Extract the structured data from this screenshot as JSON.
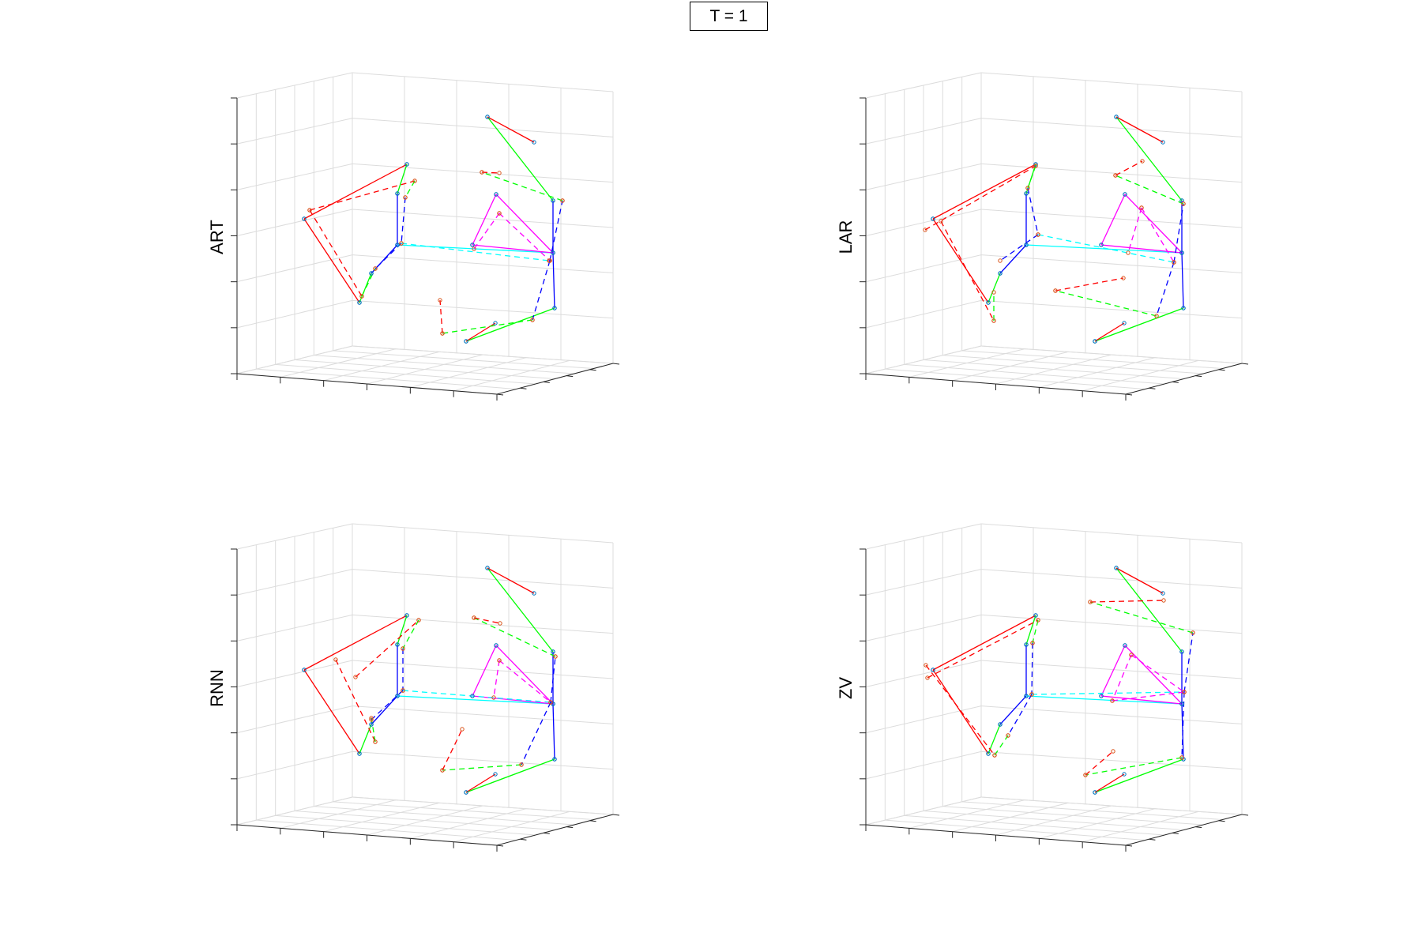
{
  "figure": {
    "title": "T = 1",
    "panels": [
      {
        "label": "ART"
      },
      {
        "label": "LAR"
      },
      {
        "label": "RNN"
      },
      {
        "label": "ZV"
      }
    ]
  },
  "colors": {
    "red": "#ff0000",
    "green": "#00ff00",
    "blue": "#0000ff",
    "cyan": "#00ffff",
    "magenta": "#ff00ff",
    "grid": "#dcdcdc",
    "axis": "#262626",
    "ground_truth_marker": "#0072bd",
    "prediction_marker": "#d95319"
  },
  "legend_semantics": {
    "solid_lines": "ground truth skeleton",
    "dashed_lines": "predicted skeleton"
  }
}
